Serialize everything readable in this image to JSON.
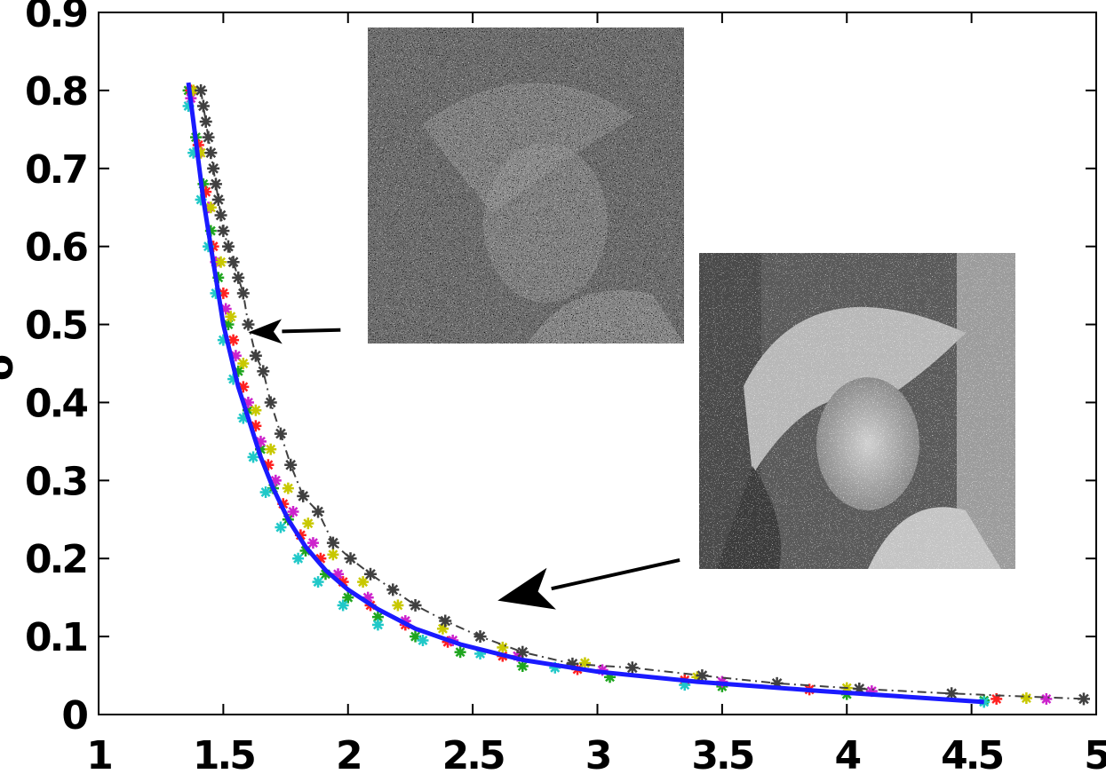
{
  "chart_data": {
    "type": "line",
    "ylabel": "σ",
    "xlim": [
      1,
      5
    ],
    "ylim": [
      0,
      0.9
    ],
    "x_ticks": [
      "1",
      "1.5",
      "2",
      "2.5",
      "3",
      "3.5",
      "4",
      "4.5",
      "5"
    ],
    "y_ticks": [
      "0",
      "0.1",
      "0.2",
      "0.3",
      "0.4",
      "0.5",
      "0.6",
      "0.7",
      "0.8",
      "0.9"
    ],
    "grid": false,
    "legend": "none",
    "series": [
      {
        "style": "markers",
        "color": "#1fa51f",
        "x": [
          1.36,
          1.39,
          1.42,
          1.45,
          1.48,
          1.52,
          1.56,
          1.6,
          1.65,
          1.7,
          1.76,
          1.83,
          1.91,
          2.0,
          2.12,
          2.27,
          2.45,
          2.7,
          3.05,
          3.5,
          4.0,
          4.55
        ],
        "y": [
          0.8,
          0.74,
          0.68,
          0.62,
          0.56,
          0.5,
          0.44,
          0.39,
          0.34,
          0.29,
          0.25,
          0.21,
          0.18,
          0.15,
          0.125,
          0.1,
          0.08,
          0.062,
          0.048,
          0.036,
          0.026,
          0.018
        ]
      },
      {
        "style": "markers",
        "color": "#ff2020",
        "x": [
          1.37,
          1.4,
          1.43,
          1.46,
          1.5,
          1.54,
          1.58,
          1.63,
          1.68,
          1.74,
          1.81,
          1.89,
          1.98,
          2.09,
          2.23,
          2.4,
          2.62,
          2.92,
          3.35,
          3.85,
          4.6
        ],
        "y": [
          0.8,
          0.73,
          0.67,
          0.6,
          0.54,
          0.48,
          0.42,
          0.37,
          0.32,
          0.27,
          0.23,
          0.2,
          0.17,
          0.14,
          0.115,
          0.093,
          0.075,
          0.058,
          0.044,
          0.032,
          0.02
        ]
      },
      {
        "style": "markers",
        "color": "#cc22cc",
        "x": [
          1.37,
          1.4,
          1.44,
          1.47,
          1.51,
          1.55,
          1.6,
          1.65,
          1.71,
          1.78,
          1.86,
          1.96,
          2.08,
          2.23,
          2.42,
          2.68,
          3.02,
          3.5,
          4.1,
          4.8
        ],
        "y": [
          0.79,
          0.72,
          0.65,
          0.58,
          0.52,
          0.46,
          0.4,
          0.35,
          0.3,
          0.26,
          0.22,
          0.18,
          0.15,
          0.12,
          0.095,
          0.075,
          0.057,
          0.042,
          0.03,
          0.02
        ]
      },
      {
        "style": "markers",
        "color": "#c8c800",
        "x": [
          1.38,
          1.41,
          1.45,
          1.49,
          1.53,
          1.58,
          1.63,
          1.69,
          1.76,
          1.84,
          1.94,
          2.06,
          2.2,
          2.38,
          2.62,
          2.95,
          3.4,
          4.0,
          4.72
        ],
        "y": [
          0.8,
          0.72,
          0.65,
          0.58,
          0.51,
          0.45,
          0.39,
          0.34,
          0.29,
          0.245,
          0.205,
          0.17,
          0.14,
          0.11,
          0.086,
          0.066,
          0.048,
          0.034,
          0.021
        ]
      },
      {
        "style": "markers",
        "color": "#20c8c8",
        "x": [
          1.36,
          1.38,
          1.41,
          1.44,
          1.47,
          1.5,
          1.54,
          1.58,
          1.62,
          1.67,
          1.73,
          1.8,
          1.88,
          1.98,
          2.12,
          2.3,
          2.53,
          2.83,
          3.35,
          4.55
        ],
        "y": [
          0.78,
          0.72,
          0.66,
          0.6,
          0.54,
          0.48,
          0.43,
          0.38,
          0.33,
          0.285,
          0.24,
          0.2,
          0.17,
          0.14,
          0.115,
          0.095,
          0.078,
          0.06,
          0.038,
          0.016
        ]
      },
      {
        "style": "dash-dot-markers",
        "color": "#404040",
        "x": [
          1.41,
          1.42,
          1.43,
          1.44,
          1.45,
          1.46,
          1.47,
          1.48,
          1.49,
          1.5,
          1.52,
          1.54,
          1.56,
          1.58,
          1.6,
          1.63,
          1.66,
          1.69,
          1.73,
          1.77,
          1.82,
          1.88,
          1.94,
          2.01,
          2.09,
          2.18,
          2.27,
          2.39,
          2.53,
          2.7,
          2.9,
          3.14,
          3.42,
          3.72,
          4.05,
          4.42,
          4.95
        ],
        "y": [
          0.8,
          0.78,
          0.76,
          0.74,
          0.72,
          0.7,
          0.68,
          0.66,
          0.64,
          0.62,
          0.6,
          0.58,
          0.56,
          0.54,
          0.5,
          0.46,
          0.44,
          0.4,
          0.36,
          0.32,
          0.28,
          0.26,
          0.22,
          0.2,
          0.18,
          0.16,
          0.14,
          0.12,
          0.1,
          0.08,
          0.065,
          0.06,
          0.05,
          0.04,
          0.033,
          0.027,
          0.02
        ]
      },
      {
        "style": "line",
        "color": "#1a1aff",
        "x": [
          1.36,
          1.38,
          1.4,
          1.42,
          1.44,
          1.46,
          1.48,
          1.5,
          1.53,
          1.56,
          1.6,
          1.65,
          1.7,
          1.76,
          1.83,
          1.91,
          2.0,
          2.12,
          2.27,
          2.45,
          2.7,
          3.0,
          3.4,
          3.9,
          4.55
        ],
        "y": [
          0.81,
          0.76,
          0.71,
          0.66,
          0.62,
          0.58,
          0.54,
          0.5,
          0.46,
          0.42,
          0.38,
          0.33,
          0.29,
          0.25,
          0.215,
          0.185,
          0.16,
          0.135,
          0.11,
          0.09,
          0.07,
          0.055,
          0.042,
          0.03,
          0.016
        ]
      }
    ],
    "arrows": [
      {
        "from": [
          1.97,
          0.493
        ],
        "to": [
          1.6,
          0.49
        ]
      },
      {
        "from": [
          3.33,
          0.198
        ],
        "to": [
          2.6,
          0.146
        ]
      }
    ],
    "insets": [
      {
        "name": "very-noisy-image",
        "noise": "heavy"
      },
      {
        "name": "noisy-portrait-image",
        "noise": "moderate"
      }
    ]
  }
}
